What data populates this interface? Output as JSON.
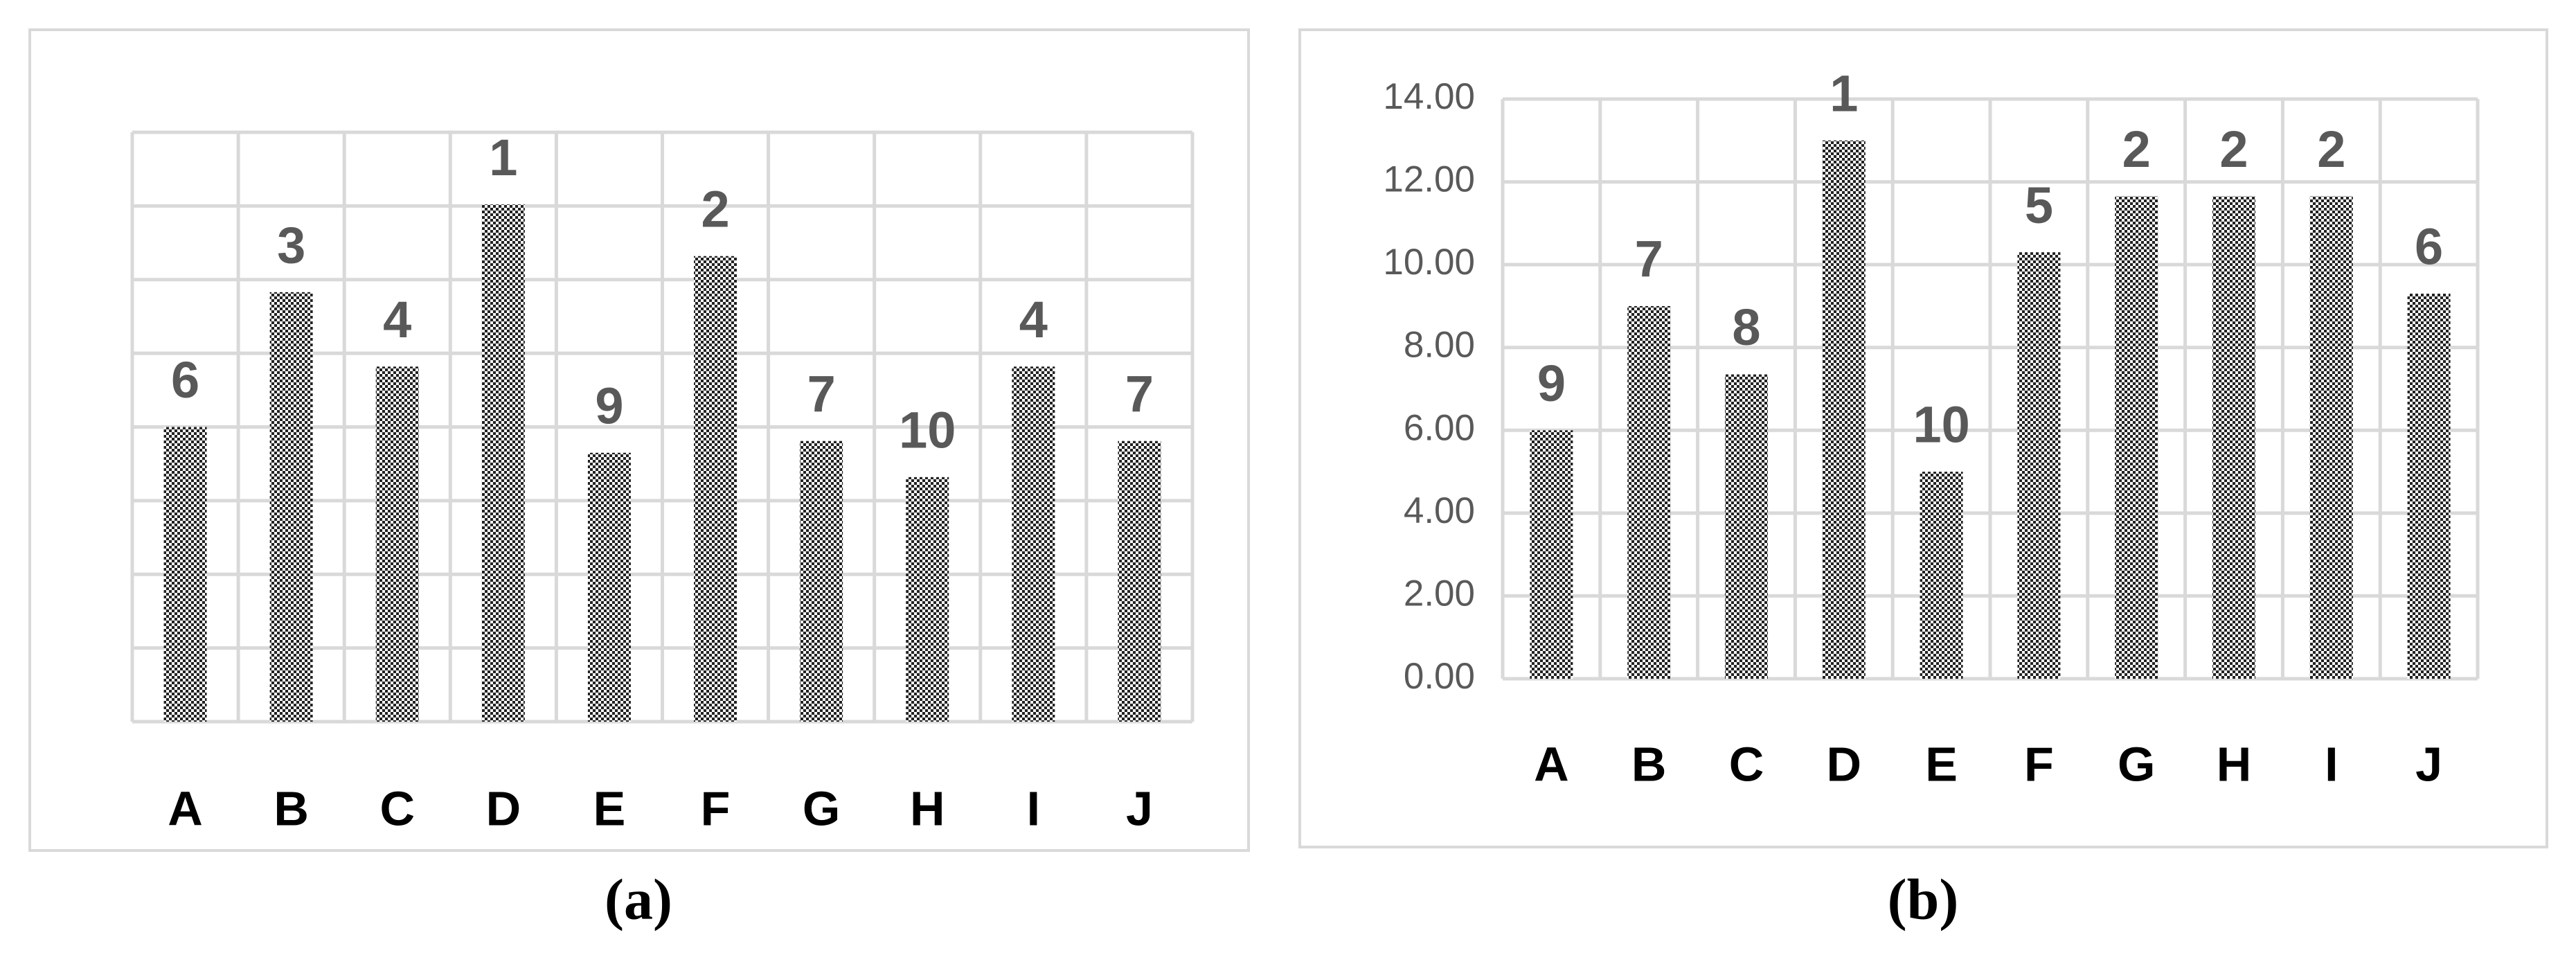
{
  "chart_data": [
    {
      "type": "bar",
      "caption": "(a)",
      "categories": [
        "A",
        "B",
        "C",
        "D",
        "E",
        "F",
        "G",
        "H",
        "I",
        "J"
      ],
      "values": [
        4.0,
        5.83,
        4.82,
        7.02,
        3.65,
        6.32,
        3.81,
        3.32,
        4.82,
        3.81
      ],
      "data_labels": [
        "6",
        "3",
        "4",
        "1",
        "9",
        "2",
        "7",
        "10",
        "4",
        "7"
      ],
      "ylim": [
        0,
        8
      ],
      "yticks": [
        0,
        1,
        2,
        3,
        4,
        5,
        6,
        7,
        8
      ],
      "show_tick_labels": false,
      "grid": true,
      "color": "#222222"
    },
    {
      "type": "bar",
      "caption": "(b)",
      "categories": [
        "A",
        "B",
        "C",
        "D",
        "E",
        "F",
        "G",
        "H",
        "I",
        "J"
      ],
      "values": [
        6.0,
        9.0,
        7.35,
        13.0,
        5.0,
        10.3,
        11.65,
        11.65,
        11.65,
        9.3
      ],
      "data_labels": [
        "9",
        "7",
        "8",
        "1",
        "10",
        "5",
        "2",
        "2",
        "2",
        "6"
      ],
      "ylim": [
        0,
        14
      ],
      "yticks": [
        {
          "value": 0,
          "label": "0.00"
        },
        {
          "value": 2,
          "label": "2.00"
        },
        {
          "value": 4,
          "label": "4.00"
        },
        {
          "value": 6,
          "label": "6.00"
        },
        {
          "value": 8,
          "label": "8.00"
        },
        {
          "value": 10,
          "label": "10.00"
        },
        {
          "value": 12,
          "label": "12.00"
        },
        {
          "value": 14,
          "label": "14.00"
        }
      ],
      "show_tick_labels": true,
      "grid": true,
      "color": "#222222"
    }
  ]
}
